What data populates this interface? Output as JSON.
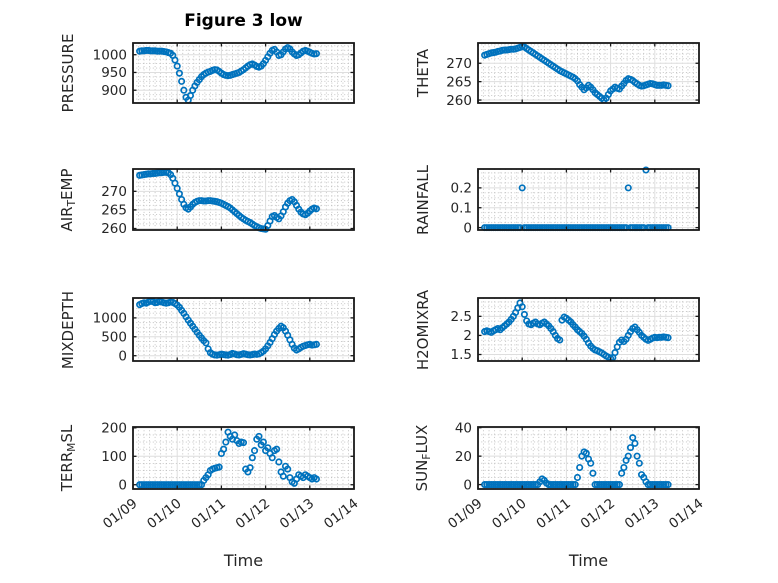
{
  "figure": {
    "background": "#ffffff",
    "marker_color": "#0072BD",
    "axis_color": "#1a1a1a",
    "major_grid_color": "#dedede",
    "minor_grid_color": "#bfbfbf",
    "text_color": "#262626"
  },
  "chart_data": {
    "type": "scatter",
    "title": "Figure 3 low",
    "xlabel": "Time",
    "layout": "4 rows x 2 cols of subplots, shared time axis 01/09 - 01/14",
    "marker": "open-circle",
    "legend": "none",
    "grid": "major solid + minor dotted",
    "xlim": [
      9,
      14
    ],
    "xticks": [
      9,
      10,
      11,
      12,
      13,
      14
    ],
    "xtick_labels": [
      "01/09",
      "01/10",
      "01/11",
      "01/12",
      "01/13",
      "01/14"
    ],
    "x": [
      9.15,
      9.2,
      9.25,
      9.3,
      9.35,
      9.4,
      9.45,
      9.5,
      9.55,
      9.6,
      9.65,
      9.7,
      9.75,
      9.8,
      9.85,
      9.9,
      9.95,
      10,
      10.05,
      10.1,
      10.15,
      10.2,
      10.25,
      10.3,
      10.35,
      10.4,
      10.45,
      10.5,
      10.55,
      10.6,
      10.65,
      10.7,
      10.75,
      10.8,
      10.85,
      10.9,
      10.95,
      11,
      11.05,
      11.1,
      11.15,
      11.2,
      11.25,
      11.3,
      11.35,
      11.4,
      11.45,
      11.5,
      11.55,
      11.6,
      11.65,
      11.7,
      11.75,
      11.8,
      11.85,
      11.9,
      11.95,
      12,
      12.05,
      12.1,
      12.15,
      12.2,
      12.25,
      12.3,
      12.35,
      12.4,
      12.45,
      12.5,
      12.55,
      12.6,
      12.65,
      12.7,
      12.75,
      12.8,
      12.85,
      12.9,
      12.95,
      13,
      13.05,
      13.1,
      13.15,
      13.2,
      13.25,
      13.3
    ],
    "subplots": [
      {
        "name": "PRESSURE",
        "row": 0,
        "col": 0,
        "ylabel_parts": [
          {
            "t": "PRESSURE"
          }
        ],
        "yticks": [
          900,
          950,
          1000
        ],
        "ytick_labels": [
          "900",
          "950",
          "1000"
        ],
        "ylim": [
          864,
          1033
        ],
        "values": [
          1010,
          1011,
          1011,
          1012,
          1012,
          1011,
          1011,
          1011,
          1010,
          1010,
          1010,
          1009,
          1008,
          1006,
          1004,
          998,
          985,
          968,
          948,
          925,
          900,
          880,
          872,
          885,
          900,
          912,
          922,
          930,
          938,
          944,
          948,
          951,
          953,
          956,
          958,
          957,
          953,
          948,
          944,
          942,
          941,
          942,
          944,
          946,
          948,
          950,
          954,
          958,
          963,
          968,
          972,
          974,
          971,
          967,
          965,
          968,
          975,
          984,
          994,
          1004,
          1012,
          1015,
          1008,
          998,
          1000,
          1008,
          1016,
          1020,
          1016,
          1008,
          1002,
          998,
          1000,
          1005,
          1010,
          1012,
          1010,
          1007,
          1004,
          1002,
          1003,
          null,
          null,
          null
        ]
      },
      {
        "name": "THETA",
        "row": 0,
        "col": 1,
        "ylabel_parts": [
          {
            "t": "THETA"
          }
        ],
        "yticks": [
          260,
          265,
          270
        ],
        "ytick_labels": [
          "260",
          "265",
          "270"
        ],
        "ylim": [
          259.2,
          275.5
        ],
        "values": [
          272.2,
          272.4,
          272.6,
          272.8,
          272.9,
          273,
          273.2,
          273.3,
          273.5,
          273.6,
          273.6,
          273.7,
          273.8,
          273.8,
          273.9,
          274.1,
          274.3,
          274.5,
          274.4,
          274,
          273.6,
          273.2,
          272.8,
          272.4,
          272,
          271.6,
          271.2,
          270.8,
          270.4,
          270,
          269.6,
          269.2,
          268.8,
          268.4,
          268,
          267.7,
          267.4,
          267.1,
          266.8,
          266.5,
          266.2,
          265.8,
          265.2,
          264.2,
          263.5,
          262.8,
          263.3,
          264,
          263.5,
          262.8,
          262,
          261.5,
          261,
          260.5,
          260,
          260.5,
          261.5,
          262.5,
          263,
          263.5,
          263.2,
          263,
          263.8,
          264.5,
          265.3,
          265.8,
          265.6,
          265.3,
          264.8,
          264.4,
          264,
          263.8,
          263.9,
          264.1,
          264.3,
          264.5,
          264.4,
          264.2,
          264,
          264,
          264,
          264.1,
          264,
          263.9
        ]
      },
      {
        "name": "AIR_TEMP",
        "row": 1,
        "col": 0,
        "ylabel_parts": [
          {
            "t": "AIR"
          },
          {
            "t": "T",
            "sub": true
          },
          {
            "t": "EMP"
          }
        ],
        "yticks": [
          260,
          265,
          270
        ],
        "ytick_labels": [
          "260",
          "265",
          "270"
        ],
        "ylim": [
          259.6,
          276
        ],
        "values": [
          274.3,
          274.4,
          274.5,
          274.6,
          274.7,
          274.7,
          274.8,
          274.8,
          274.9,
          275,
          275,
          275.1,
          275.1,
          275,
          274.5,
          273.5,
          272.2,
          270.8,
          269.3,
          267.8,
          266.5,
          265.6,
          265.2,
          265.8,
          266.5,
          267,
          267.3,
          267.5,
          267.5,
          267.4,
          267.4,
          267.5,
          267.5,
          267.4,
          267.3,
          267.2,
          267,
          266.8,
          266.5,
          266.2,
          265.9,
          265.5,
          265,
          264.5,
          264,
          263.5,
          263,
          262.6,
          262.2,
          261.9,
          261.6,
          261.2,
          260.8,
          260.5,
          260.2,
          260,
          259.9,
          259.8,
          260.8,
          262,
          263.2,
          263.5,
          263,
          262.6,
          263.4,
          264.5,
          265.8,
          266.8,
          267.5,
          267.8,
          267.2,
          266.2,
          265.2,
          264.4,
          263.9,
          263.7,
          264.1,
          264.7,
          265.2,
          265.5,
          265.3,
          null,
          null,
          null
        ]
      },
      {
        "name": "RAINFALL",
        "row": 1,
        "col": 1,
        "ylabel_parts": [
          {
            "t": "RAINFALL"
          }
        ],
        "yticks": [
          0,
          0.1,
          0.2
        ],
        "ytick_labels": [
          "0",
          "0.1",
          "0.2"
        ],
        "ylim": [
          -0.012,
          0.295
        ],
        "values": [
          0,
          0,
          0,
          0,
          0,
          0,
          0,
          0,
          0,
          0,
          0,
          0,
          0,
          0,
          0,
          0,
          0,
          0.2,
          0,
          0,
          0,
          0,
          0,
          0,
          0,
          0,
          0,
          0,
          0,
          0,
          0,
          0,
          0,
          0,
          0,
          0,
          0,
          0,
          0,
          0,
          0,
          0,
          0,
          0,
          0,
          0,
          0,
          0,
          0,
          0,
          0,
          0,
          0,
          0,
          0,
          0,
          0,
          0,
          0,
          0,
          0,
          0,
          0,
          0,
          0,
          0.2,
          0,
          0,
          0,
          0,
          0,
          0,
          0,
          0.29,
          0,
          0,
          0,
          0,
          0,
          0,
          0,
          0,
          0,
          0
        ]
      },
      {
        "name": "MIXDEPTH",
        "row": 2,
        "col": 0,
        "ylabel_parts": [
          {
            "t": "MIXDEPTH"
          }
        ],
        "yticks": [
          0,
          500,
          1000
        ],
        "ytick_labels": [
          "0",
          "500",
          "1000"
        ],
        "ylim": [
          -140,
          1526
        ],
        "values": [
          1350,
          1380,
          1400,
          1390,
          1420,
          1440,
          1430,
          1400,
          1410,
          1430,
          1420,
          1400,
          1390,
          1400,
          1420,
          1410,
          1380,
          1340,
          1280,
          1200,
          1120,
          1030,
          940,
          860,
          780,
          700,
          620,
          540,
          470,
          400,
          340,
          180,
          80,
          40,
          20,
          15,
          25,
          40,
          30,
          20,
          15,
          30,
          60,
          45,
          25,
          20,
          35,
          55,
          40,
          25,
          20,
          30,
          45,
          35,
          50,
          80,
          120,
          180,
          260,
          350,
          450,
          560,
          650,
          720,
          780,
          740,
          650,
          540,
          420,
          300,
          200,
          150,
          180,
          220,
          250,
          270,
          290,
          300,
          280,
          290,
          300,
          null,
          null,
          null
        ]
      },
      {
        "name": "H2OMIXRA",
        "row": 2,
        "col": 1,
        "ylabel_parts": [
          {
            "t": "H2OMIXRA"
          }
        ],
        "yticks": [
          1.5,
          2,
          2.5
        ],
        "ytick_labels": [
          "1.5",
          "2",
          "2.5"
        ],
        "ylim": [
          1.33,
          2.98
        ],
        "values": [
          2.1,
          2.12,
          2.1,
          2.08,
          2.12,
          2.15,
          2.18,
          2.15,
          2.2,
          2.25,
          2.3,
          2.35,
          2.42,
          2.5,
          2.6,
          2.72,
          2.85,
          2.75,
          2.55,
          2.38,
          2.3,
          2.28,
          2.32,
          2.35,
          2.3,
          2.28,
          2.32,
          2.35,
          2.3,
          2.25,
          2.18,
          2.1,
          2,
          1.92,
          1.88,
          2.4,
          2.48,
          2.45,
          2.4,
          2.35,
          2.28,
          2.22,
          2.15,
          2.1,
          2.05,
          1.98,
          1.9,
          1.8,
          1.72,
          1.66,
          1.62,
          1.6,
          1.57,
          1.54,
          1.5,
          1.46,
          1.43,
          1.4,
          1.42,
          1.55,
          1.7,
          1.82,
          1.88,
          1.84,
          1.9,
          2,
          2.1,
          2.18,
          2.22,
          2.15,
          2.08,
          2,
          1.95,
          1.9,
          1.87,
          1.9,
          1.93,
          1.95,
          1.94,
          1.95,
          1.95,
          1.96,
          1.95,
          1.94
        ]
      },
      {
        "name": "TERR_MSL",
        "row": 3,
        "col": 0,
        "ylabel_parts": [
          {
            "t": "TERR"
          },
          {
            "t": "M",
            "sub": true
          },
          {
            "t": "SL"
          }
        ],
        "yticks": [
          0,
          100,
          200
        ],
        "ytick_labels": [
          "0",
          "100",
          "200"
        ],
        "ylim": [
          -15,
          203
        ],
        "values": [
          0,
          0,
          0,
          0,
          0,
          0,
          0,
          0,
          0,
          0,
          0,
          0,
          0,
          0,
          0,
          0,
          0,
          0,
          0,
          0,
          0,
          0,
          0,
          0,
          0,
          0,
          0,
          0,
          0,
          15,
          25,
          35,
          50,
          55,
          58,
          60,
          62,
          110,
          125,
          150,
          185,
          170,
          160,
          175,
          155,
          145,
          150,
          148,
          55,
          45,
          60,
          95,
          120,
          160,
          170,
          140,
          150,
          120,
          130,
          110,
          95,
          120,
          125,
          80,
          45,
          30,
          65,
          55,
          25,
          10,
          5,
          20,
          35,
          30,
          25,
          35,
          30,
          25,
          20,
          25,
          20,
          null,
          null,
          null
        ]
      },
      {
        "name": "SUN_FLUX",
        "row": 3,
        "col": 1,
        "ylabel_parts": [
          {
            "t": "SUN"
          },
          {
            "t": "F",
            "sub": true
          },
          {
            "t": "LUX"
          }
        ],
        "yticks": [
          0,
          20,
          40
        ],
        "ytick_labels": [
          "0",
          "20",
          "40"
        ],
        "ylim": [
          -3.1,
          40.5
        ],
        "values": [
          0,
          0,
          0,
          0,
          0,
          0,
          0,
          0,
          0,
          0,
          0,
          0,
          0,
          0,
          0,
          0,
          0,
          0,
          0,
          0,
          0,
          0,
          0,
          0,
          0,
          2,
          4,
          3,
          1,
          0,
          0,
          0,
          0,
          0,
          0,
          0,
          0,
          0,
          0,
          0,
          0,
          0,
          5,
          12,
          20,
          23,
          22,
          18,
          15,
          8,
          0,
          0,
          0,
          0,
          0,
          0,
          0,
          0,
          0,
          0,
          0,
          0,
          8,
          12,
          17,
          20,
          26,
          33,
          29,
          20,
          15,
          7,
          5,
          2,
          0,
          0,
          0,
          0,
          0,
          0,
          0,
          0,
          0,
          0
        ]
      }
    ]
  }
}
